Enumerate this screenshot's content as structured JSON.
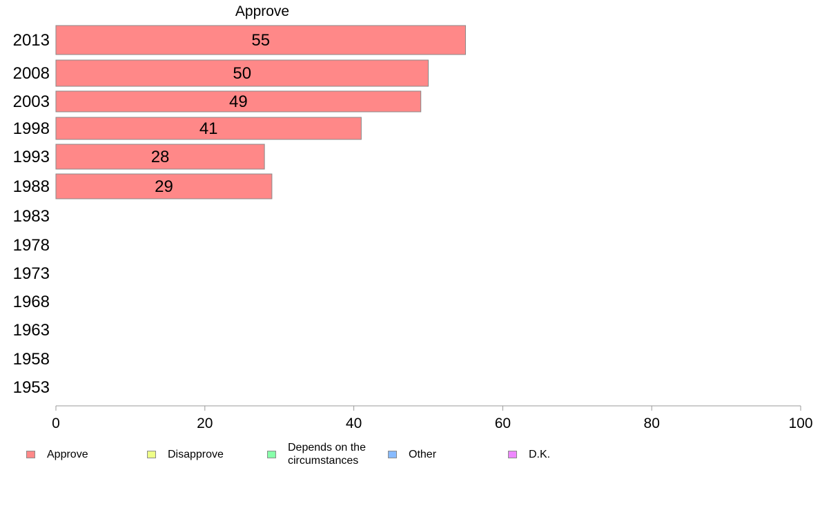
{
  "chart_data": {
    "type": "bar",
    "orientation": "horizontal",
    "title": "Approve",
    "categories": [
      "2013",
      "2008",
      "2003",
      "1998",
      "1993",
      "1988",
      "1983",
      "1978",
      "1973",
      "1968",
      "1963",
      "1958",
      "1953"
    ],
    "series": [
      {
        "name": "Approve",
        "values": [
          55,
          50,
          49,
          41,
          28,
          29,
          null,
          null,
          null,
          null,
          null,
          null,
          null
        ],
        "labels": [
          "55",
          "50",
          "49",
          "41",
          "28",
          "29",
          "",
          "",
          "",
          "",
          "",
          "",
          ""
        ]
      }
    ],
    "xlim": [
      0,
      100
    ],
    "xticks": [
      "0",
      "20",
      "40",
      "60",
      "80",
      "100"
    ],
    "grid": false,
    "legend_position": "bottom"
  },
  "colors": {
    "approve": "#ff8888",
    "disapprove": "#eeff88",
    "depends": "#88ffaa",
    "other": "#88bbff",
    "dk": "#ee88ff",
    "bar_border": "#888888",
    "axis": "#999999"
  },
  "legend": [
    {
      "label": "Approve",
      "color": "#ff8888"
    },
    {
      "label": "Disapprove",
      "color": "#eeff88"
    },
    {
      "label": "Depends on the\ncircumstances",
      "color": "#88ffaa"
    },
    {
      "label": "Other",
      "color": "#88bbff"
    },
    {
      "label": "D.K.",
      "color": "#ee88ff"
    }
  ]
}
